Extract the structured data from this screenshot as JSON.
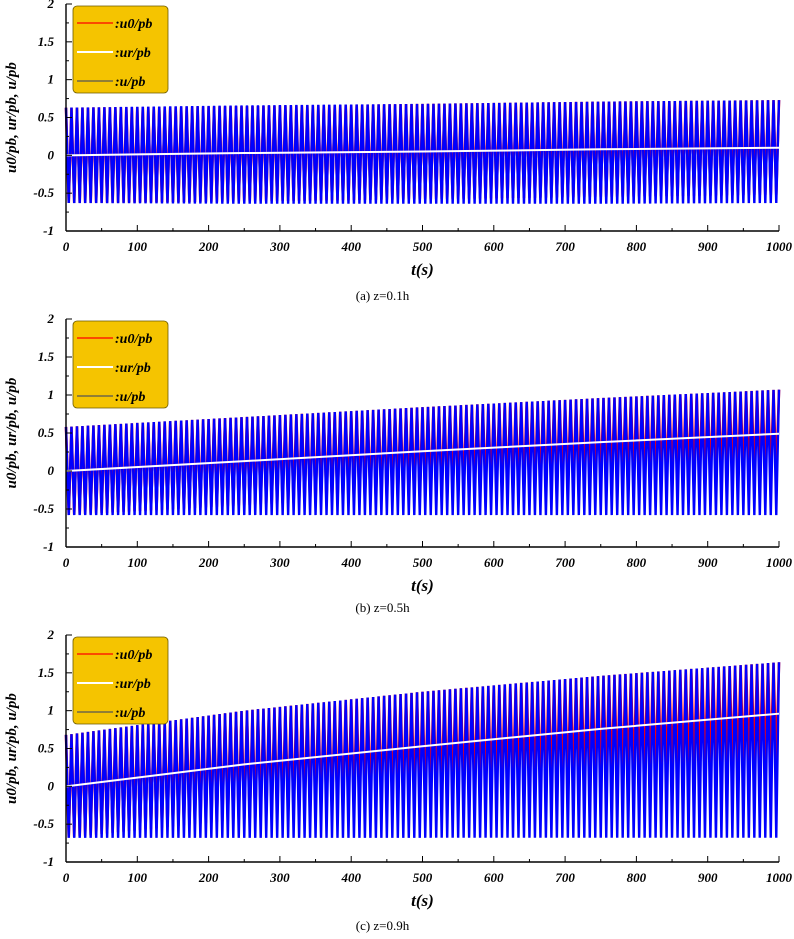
{
  "chart_data": [
    {
      "type": "line",
      "caption": "(a)  z=0.1h",
      "xlabel": "t(s)",
      "ylabel": "u0/pb, ur/pb, u/pb",
      "xlim": [
        0,
        1000
      ],
      "ylim": [
        -1,
        2
      ],
      "xticks": [
        0,
        100,
        200,
        300,
        400,
        500,
        600,
        700,
        800,
        900,
        1000
      ],
      "yticks": [
        -1,
        -0.5,
        0,
        0.5,
        1,
        1.5,
        2
      ],
      "grid": false,
      "legend_position": "top-left",
      "series": [
        {
          "name": "u0/pb",
          "color": "#ff0000",
          "x": [
            0,
            250,
            500,
            750,
            1000
          ],
          "y_max": [
            0.63,
            0.65,
            0.68,
            0.71,
            0.73
          ],
          "y_min": [
            -0.63,
            -0.61,
            -0.58,
            -0.55,
            -0.52
          ]
        },
        {
          "name": "ur/pb",
          "color": "#ffffff",
          "x": [
            0,
            250,
            500,
            750,
            1000
          ],
          "y": [
            0.0,
            0.03,
            0.05,
            0.08,
            0.1
          ]
        },
        {
          "name": "u/pb",
          "color": "#0000ff",
          "x": [
            0,
            250,
            500,
            750,
            1000
          ],
          "y_max": [
            0.63,
            0.66,
            0.68,
            0.71,
            0.73
          ],
          "y_min": [
            -0.63,
            -0.64,
            -0.64,
            -0.64,
            -0.63
          ]
        }
      ]
    },
    {
      "type": "line",
      "caption": "(b)  z=0.5h",
      "xlabel": "t(s)",
      "ylabel": "u0/pb, ur/pb, u/pb",
      "xlim": [
        0,
        1000
      ],
      "ylim": [
        -1,
        2
      ],
      "xticks": [
        0,
        100,
        200,
        300,
        400,
        500,
        600,
        700,
        800,
        900,
        1000
      ],
      "yticks": [
        -1,
        -0.5,
        0,
        0.5,
        1,
        1.5,
        2
      ],
      "grid": false,
      "legend_position": "top-left",
      "series": [
        {
          "name": "u0/pb",
          "color": "#ff0000",
          "x": [
            0,
            250,
            500,
            750,
            1000
          ],
          "y_max": [
            0.58,
            0.71,
            0.84,
            0.96,
            1.07
          ],
          "y_min": [
            -0.58,
            -0.45,
            -0.33,
            -0.21,
            -0.1
          ]
        },
        {
          "name": "ur/pb",
          "color": "#ffffff",
          "x": [
            0,
            250,
            500,
            750,
            1000
          ],
          "y": [
            0.0,
            0.13,
            0.26,
            0.38,
            0.49
          ]
        },
        {
          "name": "u/pb",
          "color": "#0000ff",
          "x": [
            0,
            250,
            500,
            750,
            1000
          ],
          "y_max": [
            0.58,
            0.71,
            0.84,
            0.96,
            1.07
          ],
          "y_min": [
            -0.58,
            -0.58,
            -0.58,
            -0.58,
            -0.58
          ]
        }
      ]
    },
    {
      "type": "line",
      "caption": "(c)  z=0.9h",
      "xlabel": "t(s)",
      "ylabel": "u0/pb, ur/pb, u/pb",
      "xlim": [
        0,
        1000
      ],
      "ylim": [
        -1,
        2
      ],
      "xticks": [
        0,
        100,
        200,
        300,
        400,
        500,
        600,
        700,
        800,
        900,
        1000
      ],
      "yticks": [
        -1,
        -0.5,
        0,
        0.5,
        1,
        1.5,
        2
      ],
      "grid": false,
      "legend_position": "top-left",
      "series": [
        {
          "name": "u0/pb",
          "color": "#ff0000",
          "x": [
            0,
            250,
            500,
            750,
            1000
          ],
          "y_max": [
            0.68,
            1.0,
            1.25,
            1.46,
            1.64
          ],
          "y_min": [
            -0.68,
            -0.43,
            -0.2,
            0.04,
            0.26
          ]
        },
        {
          "name": "ur/pb",
          "color": "#ffffff",
          "x": [
            0,
            250,
            500,
            750,
            1000
          ],
          "y": [
            0.0,
            0.29,
            0.53,
            0.76,
            0.96
          ]
        },
        {
          "name": "u/pb",
          "color": "#0000ff",
          "x": [
            0,
            250,
            500,
            750,
            1000
          ],
          "y_max": [
            0.68,
            1.0,
            1.25,
            1.46,
            1.64
          ],
          "y_min": [
            -0.68,
            -0.68,
            -0.68,
            -0.68,
            -0.68
          ]
        }
      ]
    }
  ],
  "legend_bg_color": "#f5c400"
}
